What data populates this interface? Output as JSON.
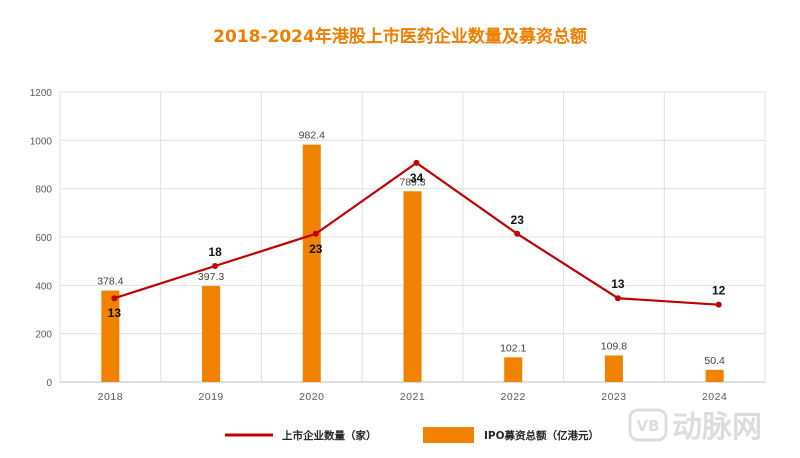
{
  "chart_data": {
    "type": "bar+line",
    "title": "2018-2024年港股上市医药企业数量及募资总额",
    "categories": [
      "2018",
      "2019",
      "2020",
      "2021",
      "2022",
      "2023",
      "2024"
    ],
    "ylim": [
      0,
      1200
    ],
    "yticks": [
      0,
      200,
      400,
      600,
      800,
      1000,
      1200
    ],
    "grid": true,
    "legend_position": "bottom",
    "series": [
      {
        "name": "IPO募资总额（亿港元）",
        "type": "bar",
        "axis": "left",
        "values": [
          378.4,
          397.3,
          982.4,
          789.3,
          102.1,
          109.8,
          50.4
        ],
        "labels": [
          "378.4",
          "397.3",
          "982.4",
          "789.3",
          "102.1",
          "109.8",
          "50.4"
        ]
      },
      {
        "name": "上市企业数量（家）",
        "type": "line",
        "axis": "secondary",
        "secondary_ylim": [
          0,
          45
        ],
        "values": [
          13,
          18,
          23,
          34,
          23,
          13,
          12
        ],
        "labels": [
          "13",
          "18",
          "23",
          "34",
          "23",
          "13",
          "12"
        ]
      }
    ]
  },
  "colors": {
    "bar": "#f08200",
    "line": "#c00000",
    "title": "#ef7e00",
    "grid": "#e0e0e0"
  },
  "watermark": {
    "badge": "VB",
    "text": "动脉网"
  }
}
